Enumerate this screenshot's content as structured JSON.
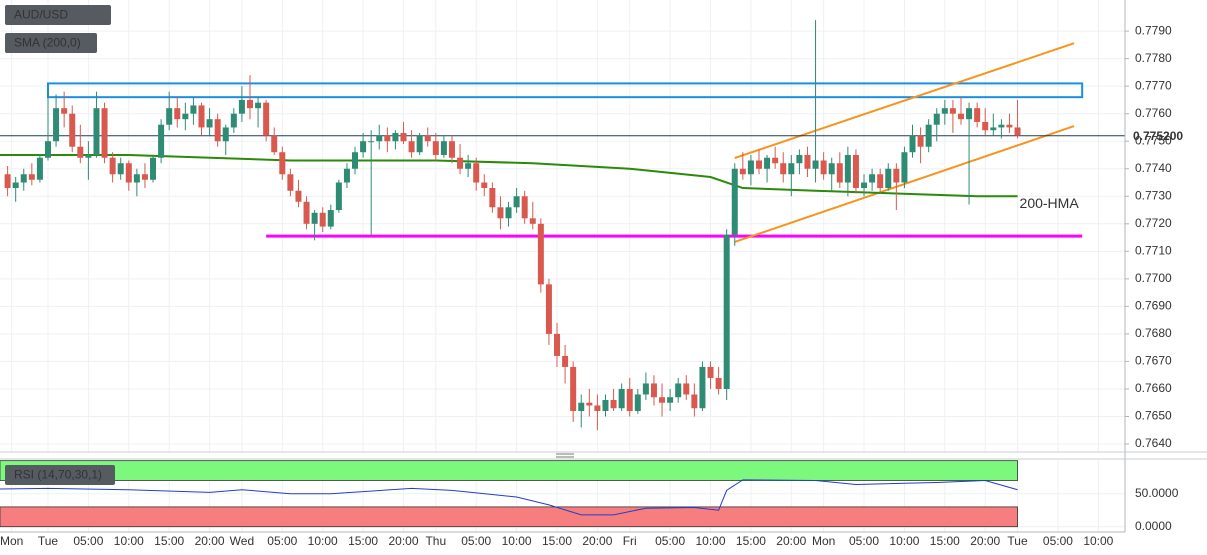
{
  "chart_data": [
    {
      "type": "candlestick",
      "title": "AUD/USD",
      "x": [
        -5,
        -4,
        -3,
        -2,
        -1,
        0,
        1,
        2,
        3,
        4,
        5,
        6,
        7,
        8,
        9,
        10,
        11,
        12,
        13,
        14,
        15,
        16,
        17,
        18,
        19,
        20,
        21,
        22,
        23,
        24,
        25,
        26,
        27,
        28,
        29,
        30,
        31,
        32,
        33,
        34,
        35,
        36,
        37,
        38,
        39,
        40,
        41,
        42,
        43,
        44,
        45,
        46,
        47,
        48,
        49,
        50,
        51,
        52,
        53,
        54,
        55,
        56,
        57,
        58,
        59,
        60,
        61,
        62,
        63,
        64,
        65,
        66,
        67,
        68,
        69,
        70,
        71,
        72,
        73,
        74,
        75,
        76,
        77,
        78,
        79,
        80,
        81,
        82,
        83,
        84,
        85,
        86,
        87,
        88,
        89,
        90,
        91,
        92,
        93,
        94,
        95,
        96,
        97,
        98,
        99,
        100,
        101,
        102,
        103,
        104,
        105,
        106,
        107,
        108,
        109,
        110,
        111,
        112,
        113,
        114,
        115,
        116,
        117,
        118,
        119,
        120
      ],
      "open": [
        0.7738,
        0.7733,
        0.7735,
        0.7738,
        0.7736,
        0.7744,
        0.775,
        0.7762,
        0.776,
        0.7748,
        0.7744,
        0.7745,
        0.7762,
        0.7744,
        0.7738,
        0.7742,
        0.7735,
        0.7738,
        0.7736,
        0.7744,
        0.7756,
        0.7762,
        0.7758,
        0.776,
        0.7763,
        0.7755,
        0.7758,
        0.775,
        0.7755,
        0.776,
        0.7765,
        0.7762,
        0.7764,
        0.7752,
        0.7746,
        0.7738,
        0.7732,
        0.7728,
        0.772,
        0.7724,
        0.7719,
        0.7725,
        0.7735,
        0.774,
        0.7746,
        0.775,
        0.775,
        0.7752,
        0.775,
        0.7753,
        0.775,
        0.7746,
        0.7752,
        0.775,
        0.7745,
        0.775,
        0.7744,
        0.774,
        0.7742,
        0.7735,
        0.7733,
        0.7726,
        0.7722,
        0.7726,
        0.773,
        0.7722,
        0.772,
        0.7698,
        0.768,
        0.7672,
        0.7668,
        0.7652,
        0.7655,
        0.7654,
        0.7652,
        0.7656,
        0.7653,
        0.766,
        0.7652,
        0.7658,
        0.7662,
        0.7657,
        0.7655,
        0.7657,
        0.7662,
        0.7658,
        0.7653,
        0.7668,
        0.7664,
        0.766,
        0.7716,
        0.774,
        0.7738,
        0.7743,
        0.774,
        0.7744,
        0.7742,
        0.7738,
        0.7742,
        0.7745,
        0.774,
        0.7743,
        0.7738,
        0.7742,
        0.7735,
        0.7745,
        0.7733,
        0.7735,
        0.7738,
        0.7733,
        0.774,
        0.7735,
        0.7746,
        0.7752,
        0.7748,
        0.7756,
        0.776,
        0.7762,
        0.776,
        0.7758,
        0.7762,
        0.7757,
        0.7754,
        0.7755,
        0.7756,
        0.7755
      ],
      "high": [
        0.7741,
        0.7737,
        0.774,
        0.7742,
        0.7745,
        0.7768,
        0.7767,
        0.7768,
        0.7763,
        0.7756,
        0.775,
        0.7768,
        0.7764,
        0.7746,
        0.7744,
        0.7743,
        0.774,
        0.7742,
        0.7745,
        0.7758,
        0.7768,
        0.7766,
        0.7764,
        0.7766,
        0.7764,
        0.7762,
        0.776,
        0.7756,
        0.7762,
        0.777,
        0.7774,
        0.7766,
        0.7765,
        0.7755,
        0.7748,
        0.774,
        0.7736,
        0.773,
        0.7725,
        0.7726,
        0.7727,
        0.7736,
        0.7742,
        0.7748,
        0.7753,
        0.7754,
        0.7756,
        0.7755,
        0.7754,
        0.7757,
        0.7754,
        0.7753,
        0.7755,
        0.7753,
        0.7752,
        0.7752,
        0.7749,
        0.7745,
        0.7744,
        0.7738,
        0.7735,
        0.773,
        0.7728,
        0.7733,
        0.7732,
        0.7728,
        0.7722,
        0.77,
        0.7684,
        0.7676,
        0.767,
        0.7658,
        0.766,
        0.7658,
        0.7658,
        0.766,
        0.7662,
        0.7664,
        0.766,
        0.7666,
        0.7665,
        0.7662,
        0.766,
        0.7664,
        0.7665,
        0.7662,
        0.767,
        0.767,
        0.7668,
        0.7718,
        0.7742,
        0.7746,
        0.7745,
        0.7747,
        0.7745,
        0.7748,
        0.7746,
        0.7745,
        0.7747,
        0.7748,
        0.7794,
        0.7746,
        0.7744,
        0.7746,
        0.7748,
        0.7747,
        0.7738,
        0.774,
        0.774,
        0.7742,
        0.7742,
        0.7748,
        0.7756,
        0.7755,
        0.7758,
        0.7762,
        0.7765,
        0.7765,
        0.7766,
        0.7764,
        0.7764,
        0.7762,
        0.776,
        0.7758,
        0.776,
        0.7765
      ],
      "low": [
        0.773,
        0.7728,
        0.7732,
        0.7734,
        0.7735,
        0.7743,
        0.7748,
        0.7755,
        0.7746,
        0.7742,
        0.7736,
        0.7744,
        0.7742,
        0.7735,
        0.7736,
        0.7732,
        0.773,
        0.7733,
        0.7735,
        0.7742,
        0.7754,
        0.7755,
        0.7754,
        0.7756,
        0.7752,
        0.7752,
        0.7748,
        0.7745,
        0.7753,
        0.7757,
        0.7758,
        0.7755,
        0.775,
        0.7745,
        0.7736,
        0.773,
        0.7726,
        0.7718,
        0.7714,
        0.7717,
        0.7718,
        0.7724,
        0.7733,
        0.7738,
        0.7744,
        0.7716,
        0.7747,
        0.7746,
        0.7747,
        0.7749,
        0.7744,
        0.7745,
        0.7748,
        0.7743,
        0.7744,
        0.7742,
        0.7738,
        0.7737,
        0.7732,
        0.773,
        0.7724,
        0.7718,
        0.7719,
        0.7724,
        0.772,
        0.7718,
        0.7695,
        0.7676,
        0.7668,
        0.7662,
        0.7648,
        0.7646,
        0.765,
        0.7645,
        0.765,
        0.7652,
        0.7652,
        0.765,
        0.7651,
        0.7656,
        0.7654,
        0.765,
        0.7652,
        0.7655,
        0.7656,
        0.765,
        0.7652,
        0.766,
        0.7658,
        0.7656,
        0.7712,
        0.7736,
        0.7734,
        0.7738,
        0.7735,
        0.774,
        0.7735,
        0.773,
        0.7738,
        0.7737,
        0.7735,
        0.7736,
        0.7732,
        0.7733,
        0.773,
        0.7731,
        0.773,
        0.7732,
        0.7731,
        0.7732,
        0.7725,
        0.7733,
        0.7744,
        0.7742,
        0.7746,
        0.775,
        0.7756,
        0.7753,
        0.7756,
        0.7727,
        0.7755,
        0.7752,
        0.7752,
        0.7751,
        0.7753,
        0.7751
      ],
      "close": [
        0.7733,
        0.7735,
        0.7738,
        0.7736,
        0.7744,
        0.775,
        0.7762,
        0.776,
        0.7748,
        0.7744,
        0.7745,
        0.7762,
        0.7744,
        0.7738,
        0.7742,
        0.7735,
        0.7738,
        0.7736,
        0.7744,
        0.7756,
        0.7762,
        0.7758,
        0.776,
        0.7763,
        0.7755,
        0.7758,
        0.775,
        0.7755,
        0.776,
        0.7765,
        0.7762,
        0.7764,
        0.7752,
        0.7746,
        0.7738,
        0.7732,
        0.7728,
        0.772,
        0.7724,
        0.7719,
        0.7725,
        0.7735,
        0.774,
        0.7746,
        0.775,
        0.775,
        0.7752,
        0.775,
        0.7753,
        0.775,
        0.7746,
        0.7752,
        0.775,
        0.7745,
        0.775,
        0.7744,
        0.774,
        0.7742,
        0.7735,
        0.7733,
        0.7726,
        0.7722,
        0.7726,
        0.773,
        0.7722,
        0.772,
        0.7698,
        0.768,
        0.7672,
        0.7668,
        0.7652,
        0.7655,
        0.7654,
        0.7652,
        0.7656,
        0.7653,
        0.766,
        0.7652,
        0.7658,
        0.7662,
        0.7657,
        0.7655,
        0.7657,
        0.7662,
        0.7658,
        0.7653,
        0.7668,
        0.7664,
        0.766,
        0.7716,
        0.774,
        0.7738,
        0.7743,
        0.774,
        0.7744,
        0.7742,
        0.7738,
        0.7742,
        0.7745,
        0.774,
        0.7743,
        0.7738,
        0.7742,
        0.7735,
        0.7745,
        0.7733,
        0.7735,
        0.7738,
        0.7733,
        0.774,
        0.7735,
        0.7746,
        0.7752,
        0.7748,
        0.7756,
        0.776,
        0.7762,
        0.776,
        0.7758,
        0.7762,
        0.7757,
        0.7754,
        0.7755,
        0.7756,
        0.7755,
        0.7752
      ],
      "up_color": "#2e8b74",
      "down_color": "#d9594f",
      "sma": {
        "name": "SMA (200,0)",
        "color": "#2a8a0a",
        "x": [
          -6,
          10,
          30,
          48,
          60,
          72,
          82,
          86,
          95,
          105,
          115,
          120
        ],
        "values": [
          0.7745,
          0.7745,
          0.7743,
          0.7743,
          0.7742,
          0.774,
          0.7737,
          0.7733,
          0.7732,
          0.7731,
          0.773,
          0.773
        ]
      },
      "annotations": [
        "200-HMA"
      ],
      "resistance_zone": {
        "x": [
          0,
          128
        ],
        "y": [
          0.7766,
          0.7771
        ],
        "color": "#1a8fe0"
      },
      "channel": {
        "color": "#f7941d",
        "x": [
          85,
          127
        ],
        "upper": [
          0.77439,
          0.77856
        ],
        "lower": [
          0.77134,
          0.77555
        ]
      },
      "support": {
        "x": [
          27,
          128
        ],
        "y": 0.77155,
        "color": "#ff00ff"
      },
      "last_price": {
        "value": 0.7752,
        "label": "0.775200"
      },
      "xlim": [
        -5.94,
        133.3
      ],
      "ylim": [
        0.76371,
        0.78013
      ],
      "yticks": [
        {
          "value": 0.764,
          "label": "0.7640"
        },
        {
          "value": 0.765,
          "label": "0.7650"
        },
        {
          "value": 0.766,
          "label": "0.7660"
        },
        {
          "value": 0.767,
          "label": "0.7670"
        },
        {
          "value": 0.768,
          "label": "0.7680"
        },
        {
          "value": 0.769,
          "label": "0.7690"
        },
        {
          "value": 0.77,
          "label": "0.7700"
        },
        {
          "value": 0.771,
          "label": "0.7710"
        },
        {
          "value": 0.772,
          "label": "0.7720"
        },
        {
          "value": 0.773,
          "label": "0.7730"
        },
        {
          "value": 0.774,
          "label": "0.7740"
        },
        {
          "value": 0.775,
          "label": "0.7750"
        },
        {
          "value": 0.776,
          "label": "0.7760"
        },
        {
          "value": 0.777,
          "label": "0.7770"
        },
        {
          "value": 0.778,
          "label": "0.7780"
        },
        {
          "value": 0.779,
          "label": "0.7790"
        }
      ],
      "grid": true
    },
    {
      "type": "line",
      "title": "RSI (14,70,30,1)",
      "color": "#2040c8",
      "x": [
        -6,
        0,
        10,
        20,
        24,
        30,
        35,
        45,
        50,
        58,
        62,
        66,
        70,
        74,
        80,
        83,
        84,
        86,
        95,
        100,
        110,
        116,
        120
      ],
      "values": [
        57,
        58,
        56,
        52,
        56,
        50,
        50,
        58,
        55,
        45,
        33,
        18,
        18,
        28,
        29,
        25,
        55,
        71,
        70,
        64,
        67,
        70,
        56
      ],
      "bands": [
        {
          "range": [
            70,
            100
          ],
          "color": "#7cf97c"
        },
        {
          "range": [
            0,
            30
          ],
          "color": "#f77e7e"
        }
      ],
      "xlim": [
        -5.94,
        133.3
      ],
      "ylim": [
        -8,
        101
      ],
      "yticks": [
        {
          "value": 0,
          "label": "0.0000"
        },
        {
          "value": 50,
          "label": "50.0000"
        }
      ],
      "xticks": [
        {
          "value": -4.5,
          "label": "Mon"
        },
        {
          "value": 0,
          "label": "Tue"
        },
        {
          "value": 5,
          "label": "05:00"
        },
        {
          "value": 10,
          "label": "10:00"
        },
        {
          "value": 15,
          "label": "15:00"
        },
        {
          "value": 20,
          "label": "20:00"
        },
        {
          "value": 24,
          "label": "Wed"
        },
        {
          "value": 29,
          "label": "05:00"
        },
        {
          "value": 34,
          "label": "10:00"
        },
        {
          "value": 39,
          "label": "15:00"
        },
        {
          "value": 44,
          "label": "20:00"
        },
        {
          "value": 48,
          "label": "Thu"
        },
        {
          "value": 53,
          "label": "05:00"
        },
        {
          "value": 58,
          "label": "10:00"
        },
        {
          "value": 63,
          "label": "15:00"
        },
        {
          "value": 68,
          "label": "20:00"
        },
        {
          "value": 72,
          "label": "Fri"
        },
        {
          "value": 77,
          "label": "05:00"
        },
        {
          "value": 82,
          "label": "10:00"
        },
        {
          "value": 87,
          "label": "15:00"
        },
        {
          "value": 92,
          "label": "20:00"
        },
        {
          "value": 96,
          "label": "Mon"
        },
        {
          "value": 101,
          "label": "05:00"
        },
        {
          "value": 106,
          "label": "10:00"
        },
        {
          "value": 111,
          "label": "15:00"
        },
        {
          "value": 116,
          "label": "20:00"
        },
        {
          "value": 120,
          "label": "Tue"
        },
        {
          "value": 125,
          "label": "05:00"
        },
        {
          "value": 130,
          "label": "10:00"
        }
      ]
    }
  ]
}
